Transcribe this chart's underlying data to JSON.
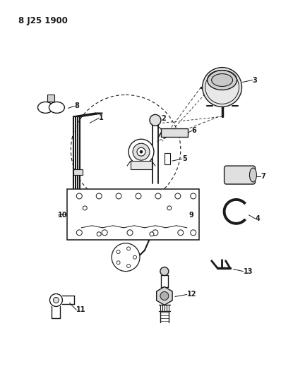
{
  "title": "8 J25 1900",
  "bg_color": "#ffffff",
  "line_color": "#1a1a1a",
  "fig_width": 3.98,
  "fig_height": 5.33,
  "dpi": 100,
  "title_fontsize": 8.5,
  "label_fontsize": 7.0
}
